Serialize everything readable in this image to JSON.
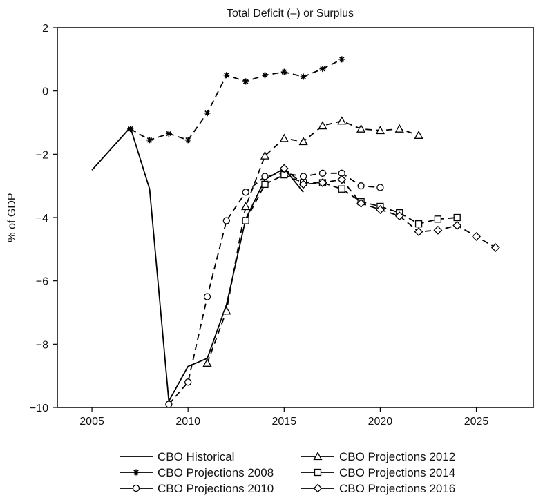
{
  "chart_data": {
    "type": "line",
    "title": "Total Deficit (–) or Surplus",
    "xlabel": "",
    "ylabel": "% of GDP",
    "xlim": [
      2003.2,
      2028
    ],
    "ylim": [
      -10,
      2
    ],
    "xticks": [
      2005,
      2010,
      2015,
      2020,
      2025
    ],
    "yticks": [
      2,
      0,
      -2,
      -4,
      -6,
      -8,
      -10
    ],
    "xtick_labels": [
      "2005",
      "2010",
      "2015",
      "2020",
      "2025"
    ],
    "ytick_labels": [
      "2",
      "0",
      "−2",
      "−4",
      "−6",
      "−8",
      "−10"
    ],
    "grid": false,
    "legend_position": "bottom",
    "series": [
      {
        "name": "CBO Historical",
        "marker": "none",
        "dash": "solid",
        "x": [
          2005,
          2007,
          2008,
          2009,
          2010,
          2011,
          2012,
          2013,
          2014,
          2015,
          2016
        ],
        "y": [
          -2.5,
          -1.15,
          -3.1,
          -9.8,
          -8.7,
          -8.45,
          -6.75,
          -4.05,
          -2.8,
          -2.45,
          -3.2
        ]
      },
      {
        "name": "CBO Projections 2008",
        "marker": "asterisk",
        "dash": "dashed",
        "x": [
          2007,
          2008,
          2009,
          2010,
          2011,
          2012,
          2013,
          2014,
          2015,
          2016,
          2017,
          2018
        ],
        "y": [
          -1.2,
          -1.55,
          -1.35,
          -1.55,
          -0.7,
          0.5,
          0.3,
          0.5,
          0.6,
          0.45,
          0.7,
          1.0
        ]
      },
      {
        "name": "CBO Projections 2010",
        "marker": "circle",
        "dash": "dashed",
        "x": [
          2009,
          2010,
          2011,
          2012,
          2013,
          2014,
          2015,
          2016,
          2017,
          2018,
          2019,
          2020
        ],
        "y": [
          -9.9,
          -9.2,
          -6.5,
          -4.1,
          -3.2,
          -2.7,
          -2.6,
          -2.7,
          -2.6,
          -2.6,
          -3.0,
          -3.05
        ]
      },
      {
        "name": "CBO Projections 2012",
        "marker": "triangle",
        "dash": "dashed",
        "x": [
          2011,
          2012,
          2013,
          2014,
          2015,
          2016,
          2017,
          2018,
          2019,
          2020,
          2021,
          2022
        ],
        "y": [
          -8.6,
          -6.95,
          -3.65,
          -2.05,
          -1.5,
          -1.6,
          -1.1,
          -0.95,
          -1.2,
          -1.25,
          -1.2,
          -1.4
        ]
      },
      {
        "name": "CBO Projections 2014",
        "marker": "square",
        "dash": "dashed",
        "x": [
          2013,
          2014,
          2015,
          2016,
          2017,
          2018,
          2019,
          2020,
          2021,
          2022,
          2023,
          2024
        ],
        "y": [
          -4.1,
          -2.95,
          -2.65,
          -2.9,
          -2.9,
          -3.1,
          -3.5,
          -3.65,
          -3.85,
          -4.2,
          -4.05,
          -4.0
        ]
      },
      {
        "name": "CBO Projections 2016",
        "marker": "diamond",
        "dash": "dashed",
        "x": [
          2015,
          2016,
          2017,
          2018,
          2019,
          2020,
          2021,
          2022,
          2023,
          2024,
          2025,
          2026
        ],
        "y": [
          -2.45,
          -2.95,
          -2.9,
          -2.8,
          -3.55,
          -3.75,
          -3.95,
          -4.45,
          -4.4,
          -4.25,
          -4.6,
          -4.95
        ]
      }
    ]
  }
}
